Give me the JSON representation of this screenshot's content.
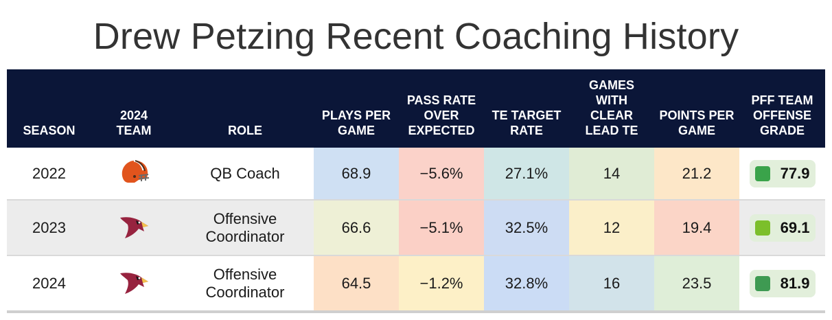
{
  "title": "Drew Petzing Recent Coaching History",
  "columns": {
    "season": "SEASON",
    "team": "2024 TEAM",
    "role": "ROLE",
    "plays": "PLAYS PER GAME",
    "proe": "PASS RATE OVER EXPECTED",
    "te_target": "TE TARGET RATE",
    "games_te": "GAMES WITH CLEAR LEAD TE",
    "ppg": "POINTS PER GAME",
    "grade": "PFF TEAM OFFENSE GRADE"
  },
  "rows": [
    {
      "season": "2022",
      "team_icon": "browns-helmet-icon",
      "role": "QB Coach",
      "plays": "68.9",
      "proe": "−5.6%",
      "te_target": "27.1%",
      "games_te": "14",
      "ppg": "21.2",
      "grade": "77.9",
      "colors": {
        "plays": "#cfe0f3",
        "proe": "#fbd2c9",
        "te_target": "#cfe6e6",
        "games_te": "#e0ecd5",
        "ppg": "#fde7c8",
        "grade": "#3aa34a"
      }
    },
    {
      "season": "2023",
      "team_icon": "cardinals-logo-icon",
      "role": "Offensive Coordinator",
      "plays": "66.6",
      "proe": "−5.1%",
      "te_target": "32.5%",
      "games_te": "12",
      "ppg": "19.4",
      "grade": "69.1",
      "colors": {
        "plays": "#eef0d6",
        "proe": "#fbd0c6",
        "te_target": "#cddcf3",
        "games_te": "#fbefc9",
        "ppg": "#fbd5c7",
        "grade": "#7cbf2a"
      }
    },
    {
      "season": "2024",
      "team_icon": "cardinals-logo-icon",
      "role": "Offensive Coordinator",
      "plays": "64.5",
      "proe": "−1.2%",
      "te_target": "32.8%",
      "games_te": "16",
      "ppg": "23.5",
      "grade": "81.9",
      "colors": {
        "plays": "#fde0c6",
        "proe": "#fdf0c7",
        "te_target": "#cbdcf5",
        "games_te": "#d2e3ea",
        "ppg": "#dfeed8",
        "grade": "#3e9a52"
      }
    }
  ],
  "colors": {
    "header_bg": "#0b1638",
    "header_text": "#ffffff",
    "browns_orange": "#e1541d",
    "cardinals_red": "#97233f"
  }
}
